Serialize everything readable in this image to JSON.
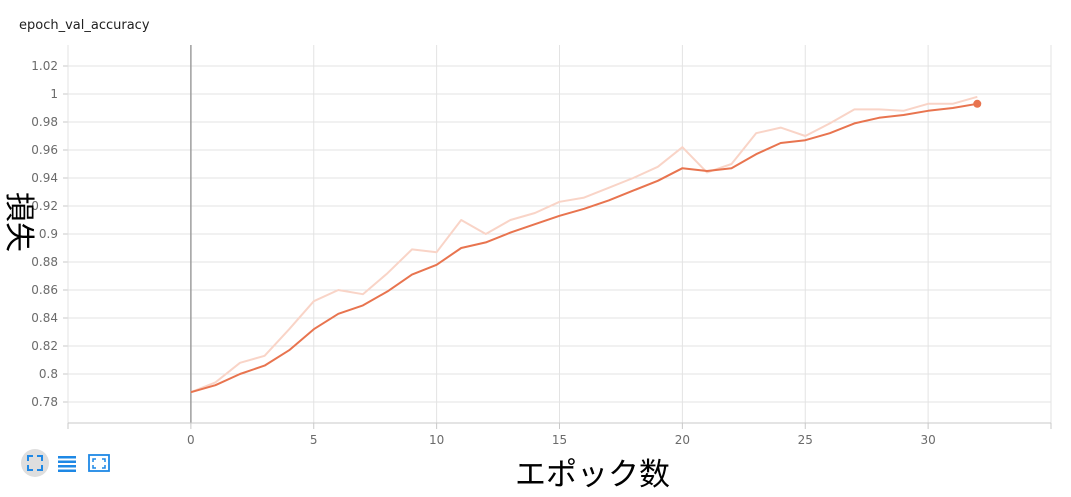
{
  "chart_data": {
    "type": "line",
    "title": "epoch_val_accuracy",
    "xlabel": "エポック数",
    "ylabel": "損失",
    "xlim": [
      -5,
      35
    ],
    "ylim": [
      0.765,
      1.035
    ],
    "x_ticks": [
      "0",
      "5",
      "10",
      "15",
      "20",
      "25",
      "30"
    ],
    "y_ticks": [
      "0.78",
      "0.8",
      "0.82",
      "0.84",
      "0.86",
      "0.88",
      "0.9",
      "0.92",
      "0.94",
      "0.96",
      "0.98",
      "1",
      "1.02"
    ],
    "grid": true,
    "series": [
      {
        "role": "raw",
        "color": "#f9d4c7",
        "x": [
          0,
          1,
          2,
          3,
          4,
          5,
          6,
          7,
          8,
          9,
          10,
          11,
          12,
          13,
          14,
          15,
          16,
          17,
          18,
          19,
          20,
          21,
          22,
          23,
          24,
          25,
          26,
          27,
          28,
          29,
          30,
          31,
          32
        ],
        "values": [
          0.787,
          0.794,
          0.808,
          0.813,
          0.832,
          0.852,
          0.86,
          0.857,
          0.872,
          0.889,
          0.887,
          0.91,
          0.9,
          0.91,
          0.915,
          0.923,
          0.926,
          0.933,
          0.94,
          0.948,
          0.962,
          0.944,
          0.95,
          0.972,
          0.976,
          0.97,
          0.979,
          0.989,
          0.989,
          0.988,
          0.993,
          0.993,
          0.998
        ]
      },
      {
        "role": "smoothed",
        "color": "#e8744f",
        "x": [
          0,
          1,
          2,
          3,
          4,
          5,
          6,
          7,
          8,
          9,
          10,
          11,
          12,
          13,
          14,
          15,
          16,
          17,
          18,
          19,
          20,
          21,
          22,
          23,
          24,
          25,
          26,
          27,
          28,
          29,
          30,
          31,
          32
        ],
        "values": [
          0.787,
          0.792,
          0.8,
          0.806,
          0.817,
          0.832,
          0.843,
          0.849,
          0.859,
          0.871,
          0.878,
          0.89,
          0.894,
          0.901,
          0.907,
          0.913,
          0.918,
          0.924,
          0.931,
          0.938,
          0.947,
          0.945,
          0.947,
          0.957,
          0.965,
          0.967,
          0.972,
          0.979,
          0.983,
          0.985,
          0.988,
          0.99,
          0.993
        ]
      }
    ]
  },
  "toolbar": {
    "icons": [
      "fit-domain-icon",
      "toggle-log-scale-icon",
      "expand-chart-icon"
    ]
  }
}
